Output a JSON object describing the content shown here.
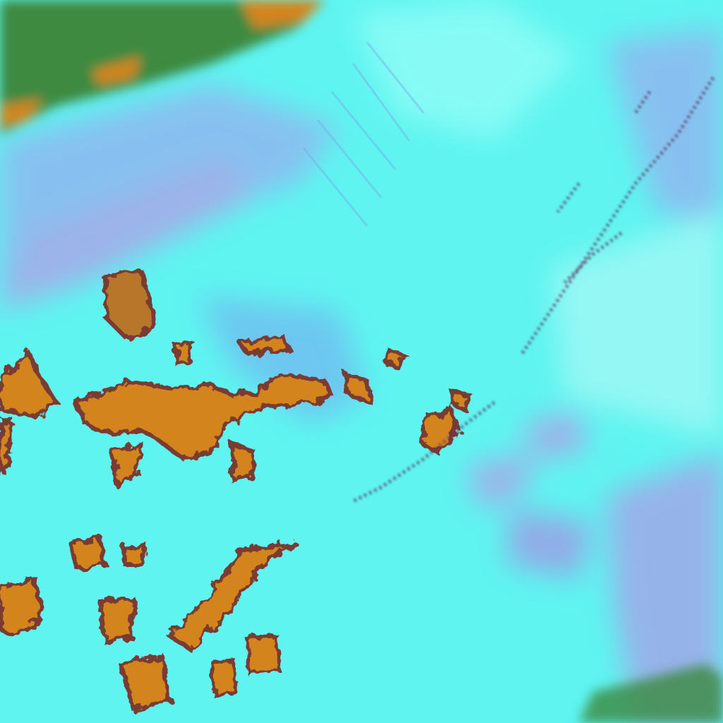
{
  "image": {
    "kind": "false-color satellite imagery",
    "colors": {
      "cloud_cyan": "#5ff4f0",
      "bright_cyan": "#8ffcf6",
      "haze_blue": "#8fb8f0",
      "lavender": "#a8a8e8",
      "deep_blue": "#6a86e0",
      "terrain_orange": "#d4841e",
      "terrain_edge": "#7a3a30",
      "vegetation_green": "#3c8a40"
    }
  }
}
